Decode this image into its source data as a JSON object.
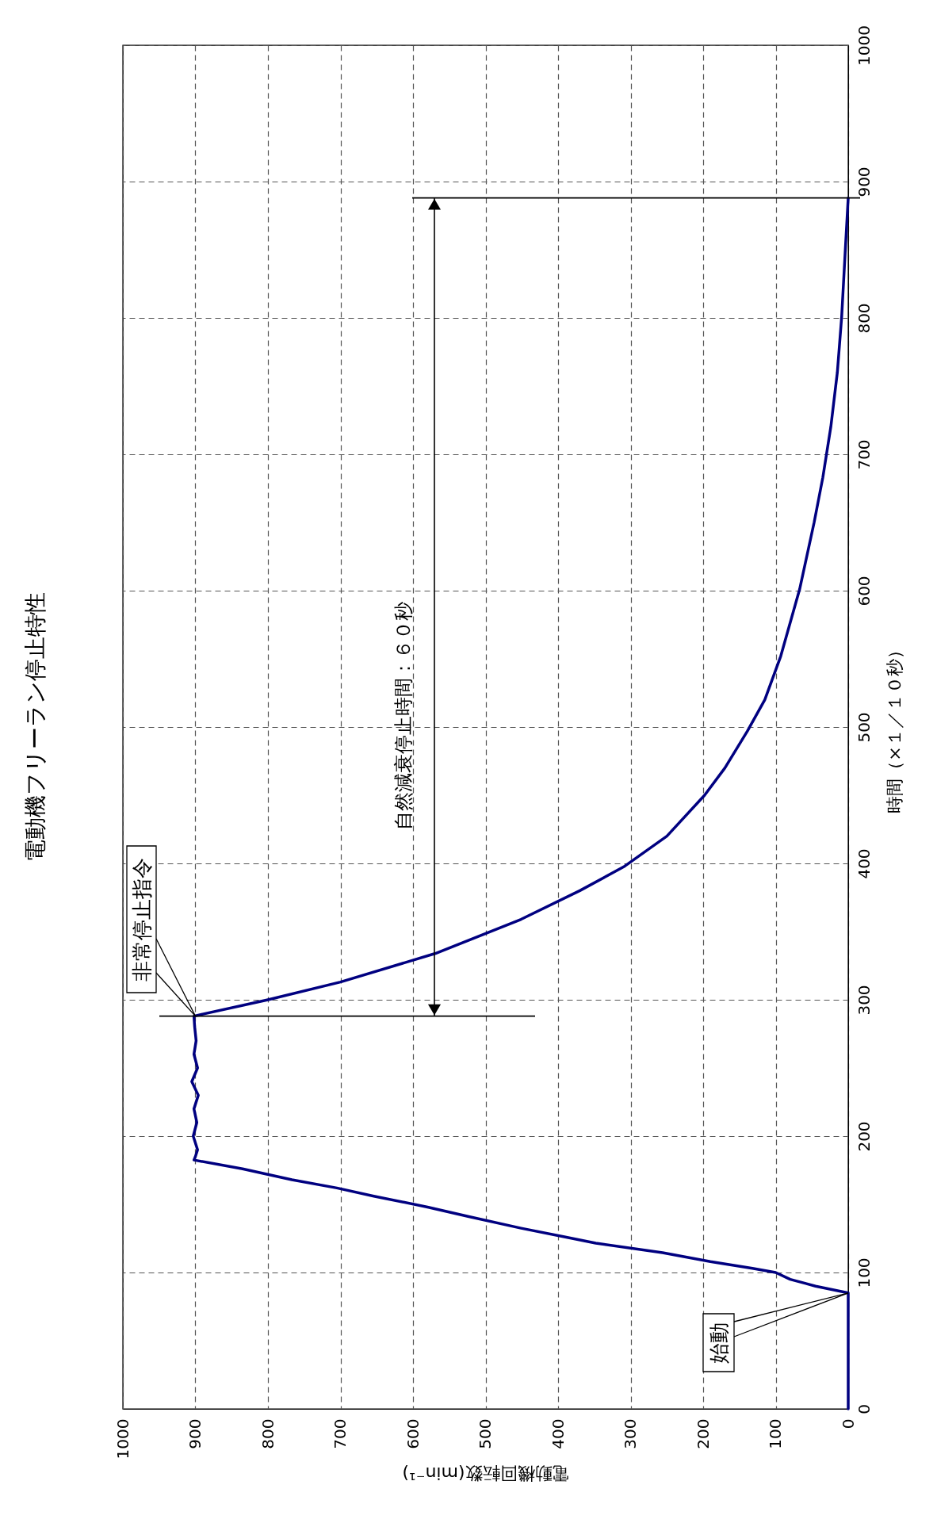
{
  "chart_data": {
    "type": "line",
    "title": "電動機フリーラン停止特性",
    "xlabel": "電動機回転数(min⁻¹)",
    "ylabel": "時間（×１／１０秒）",
    "x": [
      0,
      0,
      0,
      45,
      80,
      100,
      132,
      190,
      256,
      348,
      390,
      451,
      523,
      580,
      654,
      705,
      767,
      835,
      902,
      900,
      897,
      903,
      898,
      902,
      896,
      905,
      897,
      902,
      899,
      901,
      902,
      800,
      700,
      569,
      451,
      370,
      308,
      250,
      198,
      170,
      139,
      115,
      93,
      67,
      47,
      35,
      24,
      15,
      9,
      4,
      0
    ],
    "values": [
      0,
      40,
      85,
      90,
      95,
      100,
      103,
      108,
      114.5,
      121.5,
      126,
      132.5,
      141,
      148,
      156,
      162,
      168,
      176,
      182.5,
      185,
      190,
      200,
      210,
      220,
      230,
      240,
      250,
      260,
      270,
      280,
      288,
      300,
      313,
      334,
      359,
      380,
      398,
      420,
      450,
      470,
      497,
      520,
      552,
      601,
      650,
      683,
      720,
      760,
      801,
      850,
      888
    ],
    "color": "#000080",
    "xlim": [
      1000,
      0
    ],
    "ylim": [
      0,
      1000
    ],
    "xticks": [
      0,
      100,
      200,
      300,
      400,
      500,
      600,
      700,
      800,
      900,
      1000
    ],
    "yticks": [
      0,
      100,
      200,
      300,
      400,
      500,
      600,
      700,
      800,
      900,
      1000
    ],
    "grid": true,
    "ref_lines": [
      {
        "axis": "y",
        "value": 288,
        "color": "#000000"
      },
      {
        "axis": "y",
        "value": 888,
        "color": "#000000"
      }
    ],
    "annotations": [
      {
        "text": "非常停止指令",
        "x": 900,
        "y": 288
      },
      {
        "text": "始動",
        "x": 0,
        "y": 85
      },
      "自然減衰停止時間：６０秒"
    ]
  }
}
